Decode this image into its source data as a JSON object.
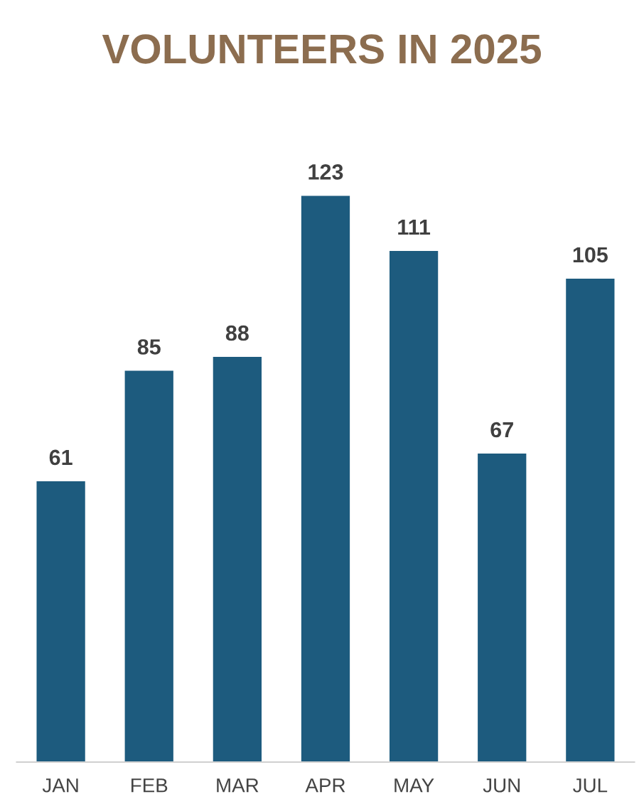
{
  "chart_data": {
    "type": "bar",
    "title": "VOLUNTEERS IN 2025",
    "categories": [
      "JAN",
      "FEB",
      "MAR",
      "APR",
      "MAY",
      "JUN",
      "JUL"
    ],
    "values": [
      61,
      85,
      88,
      123,
      111,
      67,
      105
    ],
    "color": "#1d5b7e",
    "data_labels": true,
    "grid": false,
    "legend": false,
    "tick_labels": "x"
  }
}
